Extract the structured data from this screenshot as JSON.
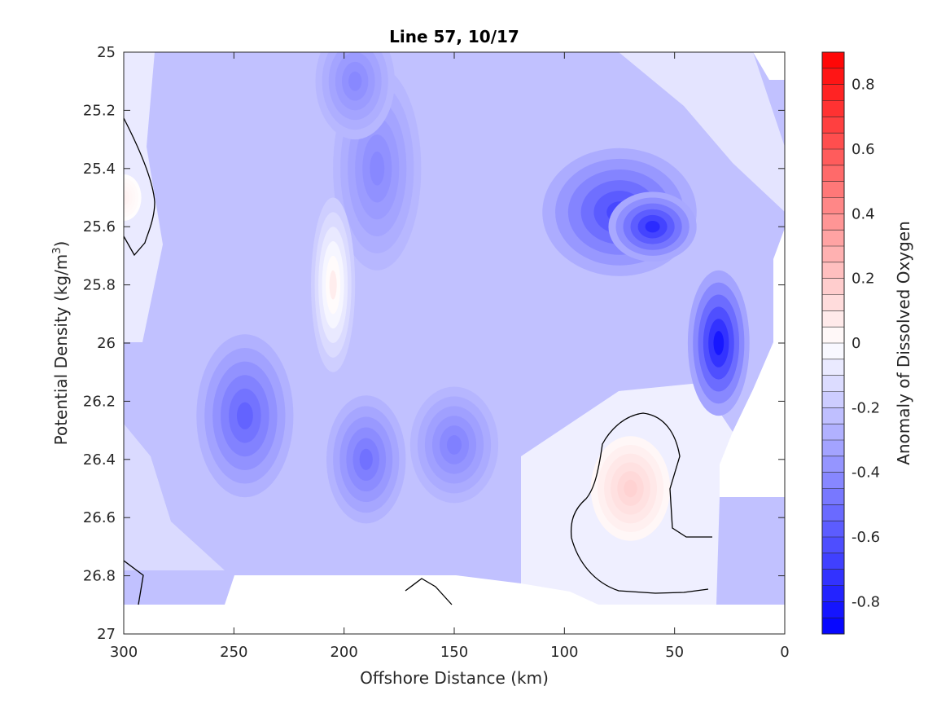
{
  "chart_data": {
    "type": "heatmap",
    "title": "Line 57, 10/17",
    "xlabel": "Offshore Distance (km)",
    "ylabel_main": "Potential Density (kg/m",
    "ylabel_sup": "3",
    "ylabel_close": ")",
    "xlim": [
      300,
      0
    ],
    "ylim": [
      25,
      27
    ],
    "x_ticks": [
      "300",
      "250",
      "200",
      "150",
      "100",
      "50",
      "0"
    ],
    "y_ticks": [
      "25",
      "25.2",
      "25.4",
      "25.6",
      "25.8",
      "26",
      "26.2",
      "26.4",
      "26.6",
      "26.8",
      "27"
    ],
    "colorbar": {
      "label": "Anomaly of Dissolved Oxygen",
      "range": [
        -0.9,
        0.9
      ],
      "levels": 36,
      "ticks": [
        "0.8",
        "0.6",
        "0.4",
        "0.2",
        "0",
        "-0.2",
        "-0.4",
        "-0.6",
        "-0.8"
      ],
      "min_color": "#0000ff",
      "mid_color": "#ffffff",
      "max_color": "#ff0000"
    },
    "features": [
      {
        "kind": "low",
        "x": 245,
        "y": 26.25,
        "value": -0.55,
        "rx": 22,
        "ry": 0.28
      },
      {
        "kind": "low",
        "x": 190,
        "y": 26.4,
        "value": -0.5,
        "rx": 18,
        "ry": 0.22
      },
      {
        "kind": "low",
        "x": 185,
        "y": 25.4,
        "value": -0.42,
        "rx": 20,
        "ry": 0.35
      },
      {
        "kind": "low",
        "x": 195,
        "y": 25.1,
        "value": -0.42,
        "rx": 18,
        "ry": 0.2
      },
      {
        "kind": "low",
        "x": 150,
        "y": 26.35,
        "value": -0.45,
        "rx": 20,
        "ry": 0.2
      },
      {
        "kind": "low",
        "x": 75,
        "y": 25.55,
        "value": -0.65,
        "rx": 35,
        "ry": 0.22
      },
      {
        "kind": "low",
        "x": 60,
        "y": 25.6,
        "value": -0.75,
        "rx": 20,
        "ry": 0.12
      },
      {
        "kind": "low",
        "x": 30,
        "y": 26.0,
        "value": -0.82,
        "rx": 14,
        "ry": 0.25
      },
      {
        "kind": "high_low",
        "x": 205,
        "y": 25.8,
        "value": 0.25,
        "rx": 10,
        "ry": 0.3
      },
      {
        "kind": "high",
        "x": 70,
        "y": 26.5,
        "value": 0.16,
        "rx": 18,
        "ry": 0.18
      },
      {
        "kind": "high",
        "x": 300,
        "y": 25.5,
        "value": 0.05,
        "rx": 8,
        "ry": 0.08
      },
      {
        "kind": "high",
        "x": 165,
        "y": 26.92,
        "value": 0.04,
        "rx": 8,
        "ry": 0.03
      }
    ],
    "background_value": -0.22,
    "grid": false
  }
}
